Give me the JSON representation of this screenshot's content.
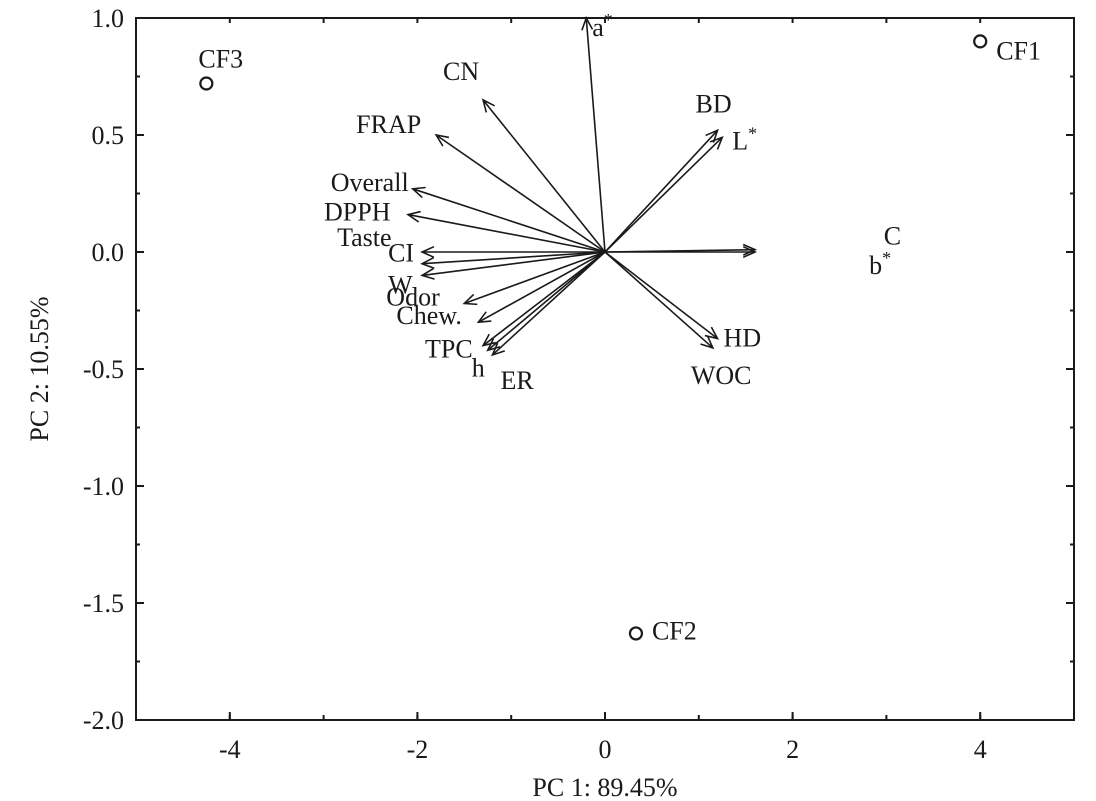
{
  "chart_data": {
    "type": "scatter",
    "xlabel": "PC 1: 89.45%",
    "ylabel": "PC 2: 10.55%",
    "xlim": [
      -5,
      5
    ],
    "ylim": [
      -2.0,
      1.0
    ],
    "xticks": [
      -4,
      -2,
      0,
      2,
      4
    ],
    "yticks": [
      -2.0,
      -1.5,
      -1.0,
      -0.5,
      0.0,
      0.5,
      1.0
    ],
    "xtick_labels": [
      "-4",
      "-2",
      "0",
      "2",
      "4"
    ],
    "ytick_labels": [
      "-2.0",
      "-1.5",
      "-1.0",
      "-0.5",
      "0.0",
      "0.5",
      "1.0"
    ],
    "grid": false,
    "points": [
      {
        "label": "CF1",
        "x": 4.0,
        "y": 0.9
      },
      {
        "label": "CF2",
        "x": 0.33,
        "y": -1.63
      },
      {
        "label": "CF3",
        "x": -4.25,
        "y": 0.72
      }
    ],
    "vectors": [
      {
        "label": "a*",
        "x": -0.2,
        "y": 1.0
      },
      {
        "label": "CN",
        "x": -1.3,
        "y": 0.65
      },
      {
        "label": "FRAP",
        "x": -1.8,
        "y": 0.5
      },
      {
        "label": "BD",
        "x": 1.2,
        "y": 0.52
      },
      {
        "label": "L*",
        "x": 1.25,
        "y": 0.49
      },
      {
        "label": "Overall",
        "x": -2.05,
        "y": 0.27
      },
      {
        "label": "DPPH",
        "x": -2.1,
        "y": 0.16
      },
      {
        "label": "Taste",
        "x": -1.95,
        "y": 0.0
      },
      {
        "label": "CI",
        "x": -1.95,
        "y": -0.05
      },
      {
        "label": "W",
        "x": -1.95,
        "y": -0.1
      },
      {
        "label": "C",
        "x": 1.6,
        "y": 0.01
      },
      {
        "label": "b*",
        "x": 1.6,
        "y": 0.0
      },
      {
        "label": "Odor",
        "x": -1.5,
        "y": -0.22
      },
      {
        "label": "Chew.",
        "x": -1.35,
        "y": -0.3
      },
      {
        "label": "TPC",
        "x": -1.3,
        "y": -0.4
      },
      {
        "label": "h",
        "x": -1.25,
        "y": -0.42
      },
      {
        "label": "ER",
        "x": -1.2,
        "y": -0.44
      },
      {
        "label": "HD",
        "x": 1.2,
        "y": -0.37
      },
      {
        "label": "WOC",
        "x": 1.15,
        "y": -0.41
      }
    ]
  }
}
